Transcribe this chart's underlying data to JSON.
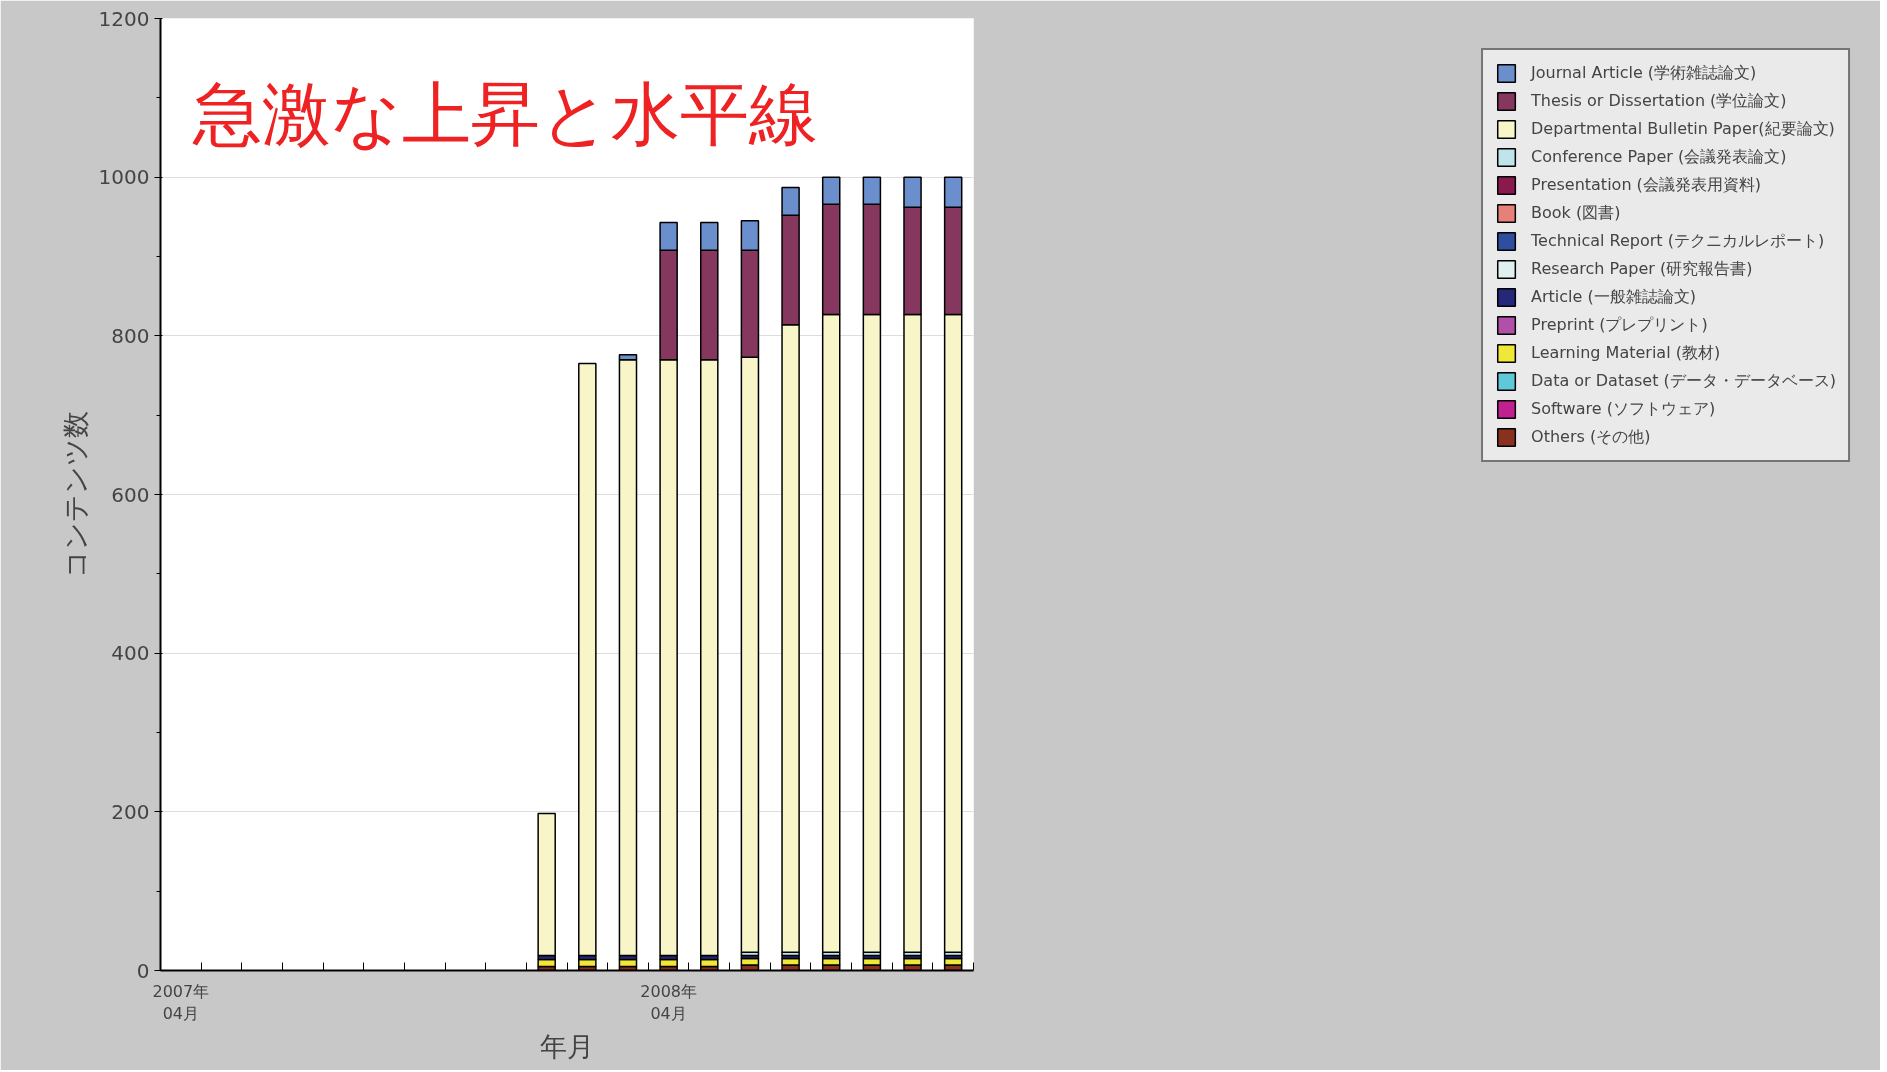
{
  "chart_data": {
    "type": "bar",
    "stacked": true,
    "title": "急激な上昇と水平線",
    "xlabel": "年月",
    "ylabel": "コンテンツ数",
    "categories": [
      "2007年\n04月",
      null,
      null,
      null,
      null,
      null,
      null,
      null,
      null,
      null,
      null,
      null,
      "2008年\n04月",
      null,
      null,
      null,
      null,
      null,
      null,
      null
    ],
    "ylim": [
      0,
      1200
    ],
    "yticks": [
      0,
      200,
      400,
      600,
      800,
      1000,
      1200
    ],
    "grid": "y",
    "legend": "right",
    "series": [
      {
        "name": "Others (その他)",
        "color": "#8a3020",
        "values": [
          null,
          null,
          null,
          null,
          null,
          null,
          null,
          null,
          null,
          5,
          5,
          5,
          5,
          5,
          7,
          7,
          7,
          7,
          7,
          7
        ]
      },
      {
        "name": "Software (ソフトウェア)",
        "color": "#c02090",
        "values": [
          null,
          null,
          null,
          null,
          null,
          null,
          null,
          null,
          null,
          null,
          null,
          null,
          null,
          null,
          null,
          null,
          null,
          null,
          null,
          null
        ]
      },
      {
        "name": "Data or Dataset (データ・データベース)",
        "color": "#60c8d8",
        "values": [
          null,
          null,
          null,
          null,
          null,
          null,
          null,
          null,
          null,
          null,
          null,
          null,
          null,
          null,
          null,
          null,
          null,
          null,
          null,
          null
        ]
      },
      {
        "name": "Learning Material (教材)",
        "color": "#f0e838",
        "values": [
          null,
          null,
          null,
          null,
          null,
          null,
          null,
          null,
          null,
          9,
          9,
          9,
          9,
          9,
          8,
          8,
          8,
          8,
          8,
          8
        ]
      },
      {
        "name": "Preprint (プレプリント)",
        "color": "#b050a8",
        "values": [
          null,
          null,
          null,
          null,
          null,
          null,
          null,
          null,
          null,
          null,
          null,
          null,
          null,
          null,
          null,
          null,
          null,
          null,
          null,
          null
        ]
      },
      {
        "name": "Article (一般雑誌論文)",
        "color": "#252878",
        "values": [
          null,
          null,
          null,
          null,
          null,
          null,
          null,
          null,
          null,
          5,
          5,
          5,
          5,
          5,
          4,
          4,
          4,
          4,
          4,
          4
        ]
      },
      {
        "name": "Research Paper (研究報告書)",
        "color": "#dff0f0",
        "values": [
          null,
          null,
          null,
          null,
          null,
          null,
          null,
          null,
          null,
          null,
          null,
          null,
          null,
          null,
          null,
          null,
          null,
          null,
          null,
          null
        ]
      },
      {
        "name": "Technical Report (テクニカルレポート)",
        "color": "#2e4ea0",
        "values": [
          null,
          null,
          null,
          null,
          null,
          null,
          null,
          null,
          null,
          null,
          null,
          null,
          null,
          null,
          null,
          null,
          null,
          null,
          null,
          null
        ]
      },
      {
        "name": "Book (図書)",
        "color": "#e8807a",
        "values": [
          null,
          null,
          null,
          null,
          null,
          null,
          null,
          null,
          null,
          null,
          null,
          null,
          null,
          null,
          null,
          null,
          null,
          null,
          null,
          null
        ]
      },
      {
        "name": "Presentation (会議発表用資料)",
        "color": "#8a1a4e",
        "values": [
          null,
          null,
          null,
          null,
          null,
          null,
          null,
          null,
          null,
          null,
          null,
          null,
          null,
          null,
          null,
          null,
          null,
          null,
          null,
          null
        ]
      },
      {
        "name": "Conference Paper (会議発表論文)",
        "color": "#c0e4ec",
        "values": [
          null,
          null,
          null,
          null,
          null,
          null,
          null,
          null,
          null,
          null,
          null,
          null,
          null,
          null,
          4,
          4,
          4,
          4,
          4,
          4
        ]
      },
      {
        "name": "Departmental Bulletin Paper(紀要論文)",
        "color": "#f8f6c8",
        "values": [
          null,
          null,
          null,
          null,
          null,
          null,
          null,
          null,
          null,
          179,
          746,
          751,
          751,
          751,
          750,
          791,
          804,
          804,
          804,
          804
        ]
      },
      {
        "name": "Thesis or Dissertation (学位論文)",
        "color": "#85375e",
        "values": [
          null,
          null,
          null,
          null,
          null,
          null,
          null,
          null,
          null,
          null,
          null,
          null,
          138,
          138,
          135,
          138,
          139,
          139,
          135,
          135
        ]
      },
      {
        "name": "Journal Article (学術雑誌論文)",
        "color": "#6a8fcc",
        "values": [
          null,
          null,
          null,
          null,
          null,
          null,
          null,
          null,
          null,
          null,
          null,
          6,
          35,
          35,
          37,
          35,
          34,
          34,
          38,
          38
        ]
      }
    ]
  }
}
